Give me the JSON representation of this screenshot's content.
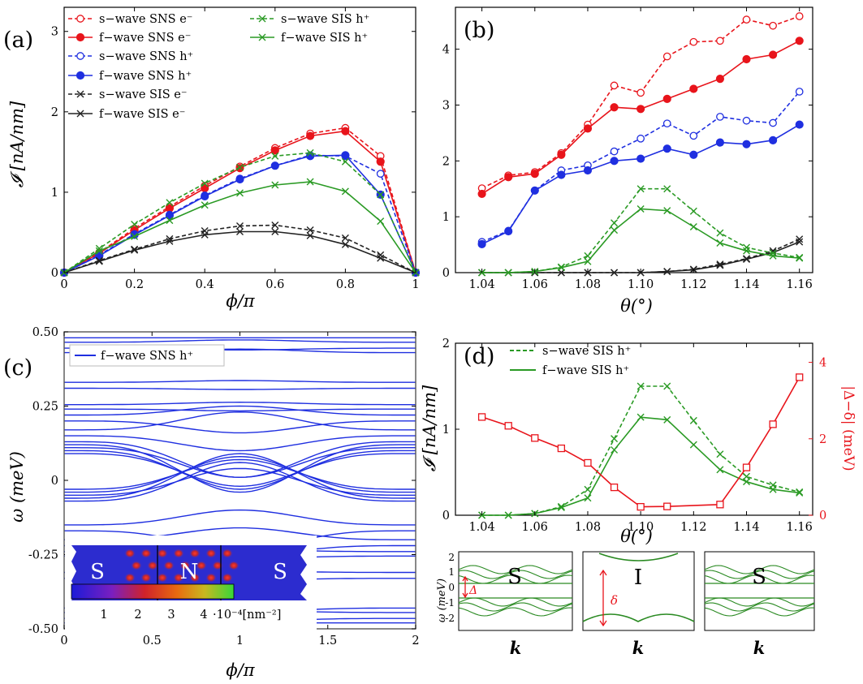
{
  "chart_data": [
    {
      "id": "a",
      "type": "line",
      "panel_label": "(a)",
      "xlabel": "ϕ/π",
      "ylabel": "𝓘 [nA/nm]",
      "xlim": [
        0,
        1
      ],
      "ylim": [
        0,
        3.3
      ],
      "xticks": [
        "0",
        "0.2",
        "0.4",
        "0.6",
        "0.8",
        "1"
      ],
      "yticks": [
        "0",
        "1",
        "2",
        "3"
      ],
      "x": [
        0,
        0.1,
        0.2,
        0.3,
        0.4,
        0.5,
        0.6,
        0.7,
        0.8,
        0.9,
        1.0
      ],
      "series": [
        {
          "name": "s−wave SNS e⁻",
          "color": "#e8141b",
          "dash": true,
          "marker": "open-circle",
          "values": [
            0,
            0.25,
            0.55,
            0.82,
            1.08,
            1.32,
            1.55,
            1.73,
            1.8,
            1.45,
            0
          ]
        },
        {
          "name": "f−wave SNS e⁻",
          "color": "#e8141b",
          "dash": false,
          "marker": "filled-circle",
          "values": [
            0,
            0.24,
            0.53,
            0.8,
            1.05,
            1.3,
            1.52,
            1.7,
            1.76,
            1.38,
            0
          ]
        },
        {
          "name": "s−wave SNS h⁺",
          "color": "#1f2fe0",
          "dash": true,
          "marker": "open-circle",
          "values": [
            0,
            0.22,
            0.48,
            0.72,
            0.96,
            1.17,
            1.33,
            1.46,
            1.45,
            1.23,
            0
          ]
        },
        {
          "name": "f−wave SNS h⁺",
          "color": "#1f2fe0",
          "dash": false,
          "marker": "filled-circle",
          "values": [
            0,
            0.21,
            0.47,
            0.71,
            0.95,
            1.16,
            1.33,
            1.45,
            1.46,
            0.97,
            0
          ]
        },
        {
          "name": "s−wave SIS e⁻",
          "color": "#222222",
          "dash": true,
          "marker": "x",
          "values": [
            0,
            0.15,
            0.29,
            0.42,
            0.52,
            0.58,
            0.59,
            0.53,
            0.43,
            0.22,
            0
          ]
        },
        {
          "name": "f−wave SIS e⁻",
          "color": "#222222",
          "dash": false,
          "marker": "x",
          "values": [
            0,
            0.14,
            0.28,
            0.39,
            0.47,
            0.51,
            0.51,
            0.46,
            0.35,
            0.18,
            0
          ]
        },
        {
          "name": "s−wave SIS h⁺",
          "color": "#2a9a24",
          "dash": true,
          "marker": "x",
          "values": [
            0,
            0.3,
            0.6,
            0.87,
            1.11,
            1.31,
            1.45,
            1.49,
            1.38,
            0.97,
            0
          ]
        },
        {
          "name": "f−wave SIS h⁺",
          "color": "#2a9a24",
          "dash": false,
          "marker": "x",
          "values": [
            0,
            0.27,
            0.45,
            0.65,
            0.84,
            0.99,
            1.09,
            1.13,
            1.01,
            0.64,
            0
          ]
        }
      ]
    },
    {
      "id": "b",
      "type": "line",
      "panel_label": "(b)",
      "xlabel": "θ(°)",
      "ylabel": "",
      "xlim": [
        1.03,
        1.165
      ],
      "ylim": [
        0,
        4.75
      ],
      "xticks": [
        "1.04",
        "1.06",
        "1.08",
        "1.10",
        "1.12",
        "1.14",
        "1.16"
      ],
      "yticks": [
        "0",
        "1",
        "2",
        "3",
        "4"
      ],
      "x": [
        1.04,
        1.05,
        1.06,
        1.07,
        1.08,
        1.09,
        1.1,
        1.11,
        1.12,
        1.13,
        1.14,
        1.15,
        1.16
      ],
      "series": [
        {
          "name": "s−wave SNS e⁻",
          "color": "#e8141b",
          "dash": true,
          "marker": "open-circle",
          "values": [
            1.51,
            1.74,
            1.8,
            2.14,
            2.65,
            3.35,
            3.22,
            3.87,
            4.13,
            4.15,
            4.53,
            4.42,
            4.59
          ]
        },
        {
          "name": "f−wave SNS e⁻",
          "color": "#e8141b",
          "dash": false,
          "marker": "filled-circle",
          "values": [
            1.41,
            1.71,
            1.77,
            2.11,
            2.58,
            2.96,
            2.93,
            3.11,
            3.29,
            3.47,
            3.82,
            3.9,
            4.15
          ]
        },
        {
          "name": "s−wave SNS h⁺",
          "color": "#1f2fe0",
          "dash": true,
          "marker": "open-circle",
          "values": [
            0.55,
            0.75,
            1.47,
            1.83,
            1.92,
            2.17,
            2.4,
            2.67,
            2.45,
            2.79,
            2.72,
            2.68,
            3.24
          ]
        },
        {
          "name": "f−wave SNS h⁺",
          "color": "#1f2fe0",
          "dash": false,
          "marker": "filled-circle",
          "values": [
            0.51,
            0.74,
            1.47,
            1.75,
            1.83,
            2.0,
            2.04,
            2.22,
            2.11,
            2.33,
            2.3,
            2.37,
            2.65
          ]
        },
        {
          "name": "s−wave SIS e⁻",
          "color": "#222222",
          "dash": true,
          "marker": "x",
          "values": [
            0.0,
            0.0,
            0.0,
            0.0,
            0.0,
            0.0,
            0.0,
            0.02,
            0.06,
            0.15,
            0.25,
            0.39,
            0.6
          ]
        },
        {
          "name": "f−wave SIS e⁻",
          "color": "#222222",
          "dash": false,
          "marker": "x",
          "values": [
            0.0,
            0.0,
            0.0,
            0.0,
            0.0,
            0.0,
            0.0,
            0.02,
            0.05,
            0.13,
            0.24,
            0.36,
            0.55
          ]
        },
        {
          "name": "s−wave SIS h⁺",
          "color": "#2a9a24",
          "dash": true,
          "marker": "x",
          "values": [
            0.0,
            0.0,
            0.02,
            0.1,
            0.3,
            0.89,
            1.5,
            1.5,
            1.1,
            0.71,
            0.45,
            0.35,
            0.27
          ]
        },
        {
          "name": "f−wave SIS h⁺",
          "color": "#2a9a24",
          "dash": false,
          "marker": "x",
          "values": [
            0.0,
            0.0,
            0.02,
            0.09,
            0.2,
            0.76,
            1.14,
            1.11,
            0.82,
            0.53,
            0.39,
            0.3,
            0.26
          ]
        }
      ]
    },
    {
      "id": "c",
      "type": "line",
      "panel_label": "(c)",
      "xlabel": "ϕ/π",
      "ylabel": "ω (meV)",
      "xlim": [
        0,
        2
      ],
      "ylim": [
        -0.5,
        0.5
      ],
      "xticks": [
        "0",
        "0.5",
        "1",
        "1.5",
        "2"
      ],
      "yticks": [
        "-0.50",
        "-0.25",
        "0",
        "0.25",
        "0.50"
      ],
      "legend": "f−wave SNS h⁺",
      "color": "#1f2fe0",
      "series": [
        {
          "e0": 0.48,
          "a": 0.0
        },
        {
          "e0": 0.465,
          "a": 0.004
        },
        {
          "e0": 0.445,
          "a": -0.003
        },
        {
          "e0": 0.43,
          "a": 0.006
        },
        {
          "e0": 0.33,
          "a": 0.003
        },
        {
          "e0": 0.31,
          "a": -0.002
        },
        {
          "e0": 0.255,
          "a": 0.004
        },
        {
          "e0": 0.24,
          "a": -0.003
        },
        {
          "e0": 0.22,
          "a": 0.015
        },
        {
          "e0": 0.2,
          "a": -0.02
        },
        {
          "e0": 0.17,
          "a": 0.03
        },
        {
          "e0": 0.15,
          "a": -0.025
        },
        {
          "e0": 0.13,
          "a": -0.06
        },
        {
          "e0": 0.12,
          "a": -0.08
        },
        {
          "e0": 0.11,
          "a": -0.05
        },
        {
          "e0": 0.1,
          "a": -0.065
        },
        {
          "e0": 0.09,
          "a": -0.055
        },
        {
          "e0": -0.48,
          "a": 0.0
        },
        {
          "e0": -0.465,
          "a": -0.004
        },
        {
          "e0": -0.445,
          "a": 0.003
        },
        {
          "e0": -0.43,
          "a": -0.006
        },
        {
          "e0": -0.33,
          "a": -0.003
        },
        {
          "e0": -0.31,
          "a": 0.002
        },
        {
          "e0": -0.255,
          "a": -0.004
        },
        {
          "e0": -0.24,
          "a": 0.003
        },
        {
          "e0": -0.22,
          "a": -0.015
        },
        {
          "e0": -0.2,
          "a": 0.02
        },
        {
          "e0": -0.17,
          "a": -0.03
        },
        {
          "e0": -0.15,
          "a": 0.025
        },
        {
          "e0": -0.07,
          "a": 0.065
        },
        {
          "e0": -0.06,
          "a": 0.075
        },
        {
          "e0": -0.05,
          "a": 0.045
        },
        {
          "e0": -0.04,
          "a": 0.06
        },
        {
          "e0": -0.03,
          "a": 0.05
        }
      ],
      "inset": {
        "labels": [
          "S",
          "N",
          "S"
        ],
        "colorbar_ticks": [
          "1",
          "2",
          "3",
          "4"
        ],
        "colorbar_unit": "·10⁻⁴[nm⁻²]"
      }
    },
    {
      "id": "d",
      "type": "line",
      "panel_label": "(d)",
      "xlabel": "θ(°)",
      "ylabel": "𝓘 [nA/nm]",
      "ylabel_right": "|Δ−δ| (meV)",
      "xlim": [
        1.03,
        1.165
      ],
      "ylim": [
        0,
        2
      ],
      "ylim_right": [
        0,
        4.5
      ],
      "xticks": [
        "1.04",
        "1.06",
        "1.08",
        "1.10",
        "1.12",
        "1.14",
        "1.16"
      ],
      "yticks": [
        "0",
        "1",
        "2"
      ],
      "yticks_right": [
        "0",
        "2",
        "4"
      ],
      "x": [
        1.04,
        1.05,
        1.06,
        1.07,
        1.08,
        1.09,
        1.1,
        1.11,
        1.12,
        1.13,
        1.14,
        1.15,
        1.16
      ],
      "series": [
        {
          "name": "s−wave SIS h⁺",
          "color": "#2a9a24",
          "dash": true,
          "marker": "x",
          "values": [
            0.0,
            0.0,
            0.02,
            0.1,
            0.3,
            0.89,
            1.5,
            1.5,
            1.1,
            0.71,
            0.45,
            0.35,
            0.27
          ]
        },
        {
          "name": "f−wave SIS h⁺",
          "color": "#2a9a24",
          "dash": false,
          "marker": "x",
          "values": [
            0.0,
            0.0,
            0.02,
            0.09,
            0.2,
            0.76,
            1.14,
            1.11,
            0.82,
            0.53,
            0.39,
            0.3,
            0.26
          ]
        }
      ],
      "right_series": {
        "name": "|Δ−δ|",
        "color": "#e8141b",
        "marker": "open-square",
        "x": [
          1.04,
          1.05,
          1.06,
          1.07,
          1.08,
          1.09,
          1.1,
          1.11,
          1.13,
          1.14,
          1.15,
          1.16
        ],
        "values": [
          2.57,
          2.34,
          2.02,
          1.75,
          1.37,
          0.73,
          0.22,
          0.23,
          0.28,
          1.25,
          2.38,
          3.61
        ]
      },
      "bands": {
        "ylabel": "ω (meV)",
        "yticks": [
          "2",
          "1",
          "0",
          "-1",
          "-2"
        ],
        "panels": [
          {
            "letter": "S",
            "xlabel": "k",
            "gap_label": "Δ"
          },
          {
            "letter": "I",
            "xlabel": "k",
            "gap_label": "δ"
          },
          {
            "letter": "S",
            "xlabel": "k",
            "gap_label": ""
          }
        ]
      }
    }
  ]
}
